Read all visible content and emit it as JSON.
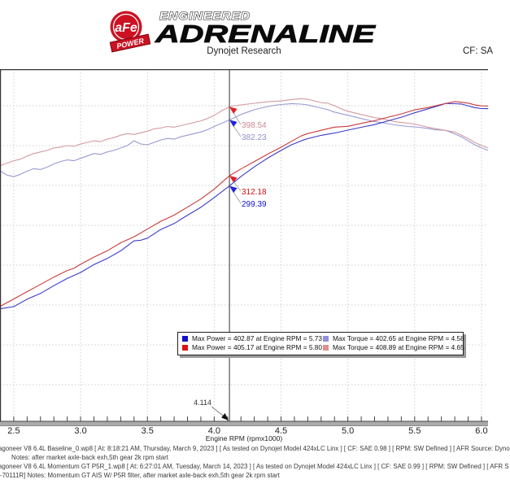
{
  "header": {
    "brand_circle_text": "aFe",
    "brand_banner": "POWER",
    "brand_line1": "ENGINEERED",
    "brand_line2": "ADRENALINE",
    "subtitle_center": "Dynojet Research",
    "subtitle_right": "CF: SA",
    "brand_red": "#cc1122"
  },
  "chart_data": {
    "type": "line",
    "title": "",
    "xlabel": "Engine RPM (rpmx1000)",
    "ylabel": "",
    "x_range": [
      2.397,
      6.049
    ],
    "y_range": [
      4.1,
      445.9
    ],
    "x_major_ticks": [
      2.5,
      3.0,
      3.5,
      4.0,
      4.5,
      5.0,
      5.5,
      6.0
    ],
    "x_tick_labels": [
      "2.5",
      "3.0",
      "3.5",
      "4.0",
      "4.5",
      "5.0",
      "5.5",
      "6.0"
    ],
    "x_minor_step": 0.1,
    "y_gridlines": [
      400,
      350,
      300,
      250,
      200,
      150,
      100,
      50
    ],
    "grid": "dotted",
    "series": [
      {
        "name": "baseline-torque",
        "color": "#9a9ad4",
        "points": [
          [
            2.4,
            318
          ],
          [
            2.45,
            313
          ],
          [
            2.5,
            311
          ],
          [
            2.55,
            314
          ],
          [
            2.6,
            318
          ],
          [
            2.65,
            321
          ],
          [
            2.7,
            320
          ],
          [
            2.75,
            323
          ],
          [
            2.8,
            327
          ],
          [
            2.85,
            330
          ],
          [
            2.9,
            332
          ],
          [
            2.95,
            331
          ],
          [
            3.0,
            334
          ],
          [
            3.05,
            337
          ],
          [
            3.1,
            340
          ],
          [
            3.15,
            339
          ],
          [
            3.2,
            342
          ],
          [
            3.25,
            344
          ],
          [
            3.3,
            347
          ],
          [
            3.35,
            350
          ],
          [
            3.4,
            356
          ],
          [
            3.45,
            352
          ],
          [
            3.5,
            351
          ],
          [
            3.55,
            354
          ],
          [
            3.6,
            357
          ],
          [
            3.65,
            359
          ],
          [
            3.7,
            358
          ],
          [
            3.75,
            361
          ],
          [
            3.8,
            363
          ],
          [
            3.85,
            365
          ],
          [
            3.9,
            367
          ],
          [
            3.95,
            370
          ],
          [
            4.0,
            374
          ],
          [
            4.114,
            382.23
          ],
          [
            4.15,
            385
          ],
          [
            4.2,
            389
          ],
          [
            4.25,
            392
          ],
          [
            4.3,
            395
          ],
          [
            4.35,
            397
          ],
          [
            4.4,
            399
          ],
          [
            4.45,
            400.5
          ],
          [
            4.5,
            401.5
          ],
          [
            4.58,
            402.65
          ],
          [
            4.65,
            402
          ],
          [
            4.7,
            401
          ],
          [
            4.75,
            399
          ],
          [
            4.8,
            397
          ],
          [
            4.85,
            395
          ],
          [
            4.9,
            392
          ],
          [
            4.95,
            390
          ],
          [
            5.0,
            388
          ],
          [
            5.05,
            386
          ],
          [
            5.1,
            384
          ],
          [
            5.15,
            382
          ],
          [
            5.2,
            380
          ],
          [
            5.25,
            379
          ],
          [
            5.3,
            377.5
          ],
          [
            5.35,
            376
          ],
          [
            5.4,
            375
          ],
          [
            5.45,
            374
          ],
          [
            5.5,
            373.5
          ],
          [
            5.55,
            372.5
          ],
          [
            5.6,
            371.5
          ],
          [
            5.65,
            370
          ],
          [
            5.7,
            369.5
          ],
          [
            5.73,
            369.3
          ],
          [
            5.8,
            364.5
          ],
          [
            5.85,
            361
          ],
          [
            5.9,
            356
          ],
          [
            5.95,
            351
          ],
          [
            6.0,
            347
          ],
          [
            6.05,
            344
          ]
        ]
      },
      {
        "name": "momentum-torque",
        "color": "#d49aa0",
        "points": [
          [
            2.4,
            325
          ],
          [
            2.45,
            328
          ],
          [
            2.5,
            331
          ],
          [
            2.55,
            333
          ],
          [
            2.6,
            337
          ],
          [
            2.65,
            340
          ],
          [
            2.7,
            342
          ],
          [
            2.75,
            344
          ],
          [
            2.8,
            347
          ],
          [
            2.85,
            348
          ],
          [
            2.9,
            350
          ],
          [
            2.95,
            349
          ],
          [
            3.0,
            352
          ],
          [
            3.05,
            354
          ],
          [
            3.1,
            356
          ],
          [
            3.15,
            355
          ],
          [
            3.2,
            358
          ],
          [
            3.25,
            360
          ],
          [
            3.3,
            363
          ],
          [
            3.35,
            365
          ],
          [
            3.4,
            364
          ],
          [
            3.45,
            366
          ],
          [
            3.5,
            368
          ],
          [
            3.55,
            371
          ],
          [
            3.6,
            372
          ],
          [
            3.65,
            374
          ],
          [
            3.7,
            373
          ],
          [
            3.75,
            375
          ],
          [
            3.8,
            377
          ],
          [
            3.85,
            379
          ],
          [
            3.9,
            381
          ],
          [
            3.95,
            384
          ],
          [
            4.0,
            388
          ],
          [
            4.05,
            393
          ],
          [
            4.114,
            398.54
          ],
          [
            4.15,
            400
          ],
          [
            4.2,
            401
          ],
          [
            4.25,
            402
          ],
          [
            4.3,
            403
          ],
          [
            4.35,
            404
          ],
          [
            4.4,
            405
          ],
          [
            4.45,
            405.5
          ],
          [
            4.5,
            406
          ],
          [
            4.55,
            407
          ],
          [
            4.6,
            408
          ],
          [
            4.65,
            408.89
          ],
          [
            4.7,
            408
          ],
          [
            4.75,
            406
          ],
          [
            4.8,
            404
          ],
          [
            4.85,
            403
          ],
          [
            4.9,
            400
          ],
          [
            4.95,
            396
          ],
          [
            5.0,
            393
          ],
          [
            5.05,
            391
          ],
          [
            5.1,
            389
          ],
          [
            5.15,
            387
          ],
          [
            5.2,
            385
          ],
          [
            5.25,
            384
          ],
          [
            5.3,
            382
          ],
          [
            5.35,
            380
          ],
          [
            5.4,
            379
          ],
          [
            5.45,
            378
          ],
          [
            5.5,
            377
          ],
          [
            5.55,
            375
          ],
          [
            5.6,
            373
          ],
          [
            5.65,
            371.5
          ],
          [
            5.7,
            370
          ],
          [
            5.75,
            368.5
          ],
          [
            5.8,
            366.9
          ],
          [
            5.85,
            363
          ],
          [
            5.9,
            359
          ],
          [
            5.95,
            354
          ],
          [
            6.0,
            350
          ],
          [
            6.05,
            347
          ]
        ]
      },
      {
        "name": "baseline-power",
        "color": "#3a3ac8",
        "points": [
          [
            2.4,
            145.3
          ],
          [
            2.5,
            148.0
          ],
          [
            2.6,
            157.4
          ],
          [
            2.7,
            164.5
          ],
          [
            2.8,
            174.3
          ],
          [
            2.9,
            183.3
          ],
          [
            3.0,
            190.8
          ],
          [
            3.1,
            200.7
          ],
          [
            3.2,
            208.4
          ],
          [
            3.3,
            218.0
          ],
          [
            3.4,
            230.5
          ],
          [
            3.45,
            231.2
          ],
          [
            3.5,
            233.9
          ],
          [
            3.6,
            244.7
          ],
          [
            3.7,
            252.2
          ],
          [
            3.8,
            262.7
          ],
          [
            3.9,
            272.5
          ],
          [
            4.0,
            284.8
          ],
          [
            4.114,
            299.39
          ],
          [
            4.2,
            311.1
          ],
          [
            4.3,
            323.4
          ],
          [
            4.4,
            334.3
          ],
          [
            4.5,
            344.0
          ],
          [
            4.58,
            351.1
          ],
          [
            4.65,
            355.9
          ],
          [
            4.7,
            358.8
          ],
          [
            4.8,
            362.8
          ],
          [
            4.9,
            365.7
          ],
          [
            5.0,
            369.4
          ],
          [
            5.1,
            372.9
          ],
          [
            5.2,
            376.3
          ],
          [
            5.3,
            381.0
          ],
          [
            5.4,
            385.6
          ],
          [
            5.5,
            391.1
          ],
          [
            5.6,
            396.1
          ],
          [
            5.7,
            401.0
          ],
          [
            5.73,
            402.87
          ],
          [
            5.8,
            402.5
          ],
          [
            5.85,
            402.1
          ],
          [
            5.9,
            399.9
          ],
          [
            5.95,
            397.6
          ],
          [
            6.0,
            396.4
          ],
          [
            6.05,
            396.3
          ]
        ]
      },
      {
        "name": "momentum-power",
        "color": "#c83a3a",
        "points": [
          [
            2.4,
            148.5
          ],
          [
            2.5,
            157.6
          ],
          [
            2.6,
            166.8
          ],
          [
            2.7,
            175.8
          ],
          [
            2.8,
            185.0
          ],
          [
            2.9,
            193.3
          ],
          [
            2.95,
            196.0
          ],
          [
            3.0,
            201.1
          ],
          [
            3.1,
            210.1
          ],
          [
            3.2,
            218.1
          ],
          [
            3.3,
            228.1
          ],
          [
            3.4,
            235.6
          ],
          [
            3.5,
            245.2
          ],
          [
            3.6,
            255.0
          ],
          [
            3.7,
            262.8
          ],
          [
            3.8,
            272.8
          ],
          [
            3.9,
            283.0
          ],
          [
            4.0,
            295.5
          ],
          [
            4.114,
            312.18
          ],
          [
            4.2,
            320.7
          ],
          [
            4.3,
            330.0
          ],
          [
            4.4,
            339.3
          ],
          [
            4.5,
            347.9
          ],
          [
            4.6,
            357.3
          ],
          [
            4.65,
            362.0
          ],
          [
            4.7,
            365.1
          ],
          [
            4.8,
            369.2
          ],
          [
            4.9,
            373.2
          ],
          [
            5.0,
            374.2
          ],
          [
            5.1,
            377.8
          ],
          [
            5.2,
            381.2
          ],
          [
            5.3,
            385.6
          ],
          [
            5.4,
            389.7
          ],
          [
            5.5,
            394.8
          ],
          [
            5.6,
            397.7
          ],
          [
            5.7,
            401.6
          ],
          [
            5.8,
            405.17
          ],
          [
            5.85,
            404.4
          ],
          [
            5.9,
            403.3
          ],
          [
            5.95,
            401.1
          ],
          [
            6.0,
            399.8
          ],
          [
            6.05,
            399.7
          ]
        ]
      }
    ],
    "cursor": {
      "rpm": 4.114,
      "axis_label": "4.114",
      "callouts": [
        {
          "text": "398.54",
          "value": 398.54,
          "text_color": "#cc8890",
          "arrow_color": "#dd2222",
          "ty": 72
        },
        {
          "text": "382.23",
          "value": 382.23,
          "text_color": "#8f8fd0",
          "arrow_color": "#2222dd",
          "ty": 87
        },
        {
          "text": "312.18",
          "value": 312.18,
          "text_color": "#cc1111",
          "arrow_color": "#dd2222",
          "ty": 154
        },
        {
          "text": "299.39",
          "value": 299.39,
          "text_color": "#1111cc",
          "arrow_color": "#2222dd",
          "ty": 169
        }
      ]
    },
    "legend_position": "bottom-center",
    "legend": [
      {
        "swatch": "#1111cc",
        "label": "Max Power = 402.87 at Engine RPM = 5.73"
      },
      {
        "swatch": "#9090dd",
        "label": "Max Torque = 402.65 at Engine RPM = 4.58"
      },
      {
        "swatch": "#dd1111",
        "label": "Max Power = 405.17 at Engine RPM = 5.80"
      },
      {
        "swatch": "#dd9090",
        "label": "Max Torque = 408.89 at Engine RPM = 4.65"
      }
    ]
  },
  "footer": {
    "lines": [
      {
        "text": "agoneer V8 6.4L Baseline_0.wp8 [ At: 8:18:21 AM, Thursday, March 9, 2023 ] [ As tested on Dynojet Model 424xLC Linx ] [ CF: SAE 0.98 ] [ RPM: SW Defined ] [ AFR Source: Dyno",
        "indent": -2
      },
      {
        "text": "Notes: after market axle-back exh,5th gear 2k rpm start",
        "indent": 14
      },
      {
        "text": "agoneer V8 6.4L Momentum GT P5R_1.wp8 [ At: 6:27:01 AM, Tuesday, March 14, 2023 ] [ As tested on Dynojet Model 424xLC Linx ] [ CF: SAE 0.99 ] [ RPM: SW Defined ] [ AFR S",
        "indent": -2
      },
      {
        "text": "-70111R]  Notes: Momentum GT AIS W/ P5R filter, after market axle-back exh,5th gear 2k rpm start",
        "indent": 0
      }
    ]
  }
}
